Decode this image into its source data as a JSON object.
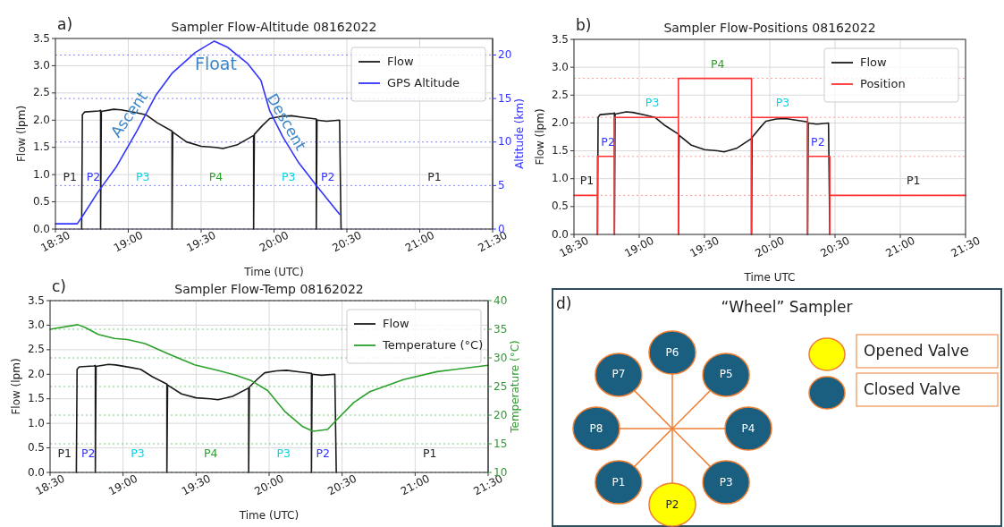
{
  "chart_data": [
    {
      "type": "line",
      "title": "Sampler Flow-Altitude 08162022",
      "xlabel": "Time (UTC)",
      "ylabel": "Flow (lpm)",
      "y2label": "Altitude (km)",
      "xlim": [
        18.5,
        21.5
      ],
      "xticks": [
        {
          "value": 18.5,
          "label": "18:30"
        },
        {
          "value": 19,
          "label": "19:00"
        },
        {
          "value": 19.5,
          "label": "19:30"
        },
        {
          "value": 20,
          "label": "20:00"
        },
        {
          "value": 20.5,
          "label": "20:30"
        },
        {
          "value": 21,
          "label": "21:00"
        },
        {
          "value": 21.5,
          "label": "21:30"
        }
      ],
      "ylim": [
        0,
        3.5
      ],
      "yticks": [
        {
          "value": 0,
          "label": "0.0"
        },
        0.5,
        {
          "value": 1,
          "label": "1.0"
        },
        1.5,
        {
          "value": 2,
          "label": "2.0"
        },
        2.5,
        {
          "value": 3,
          "label": "3.0"
        },
        3.5
      ],
      "y2lim": [
        0,
        21.9
      ],
      "y2ticks": [
        0,
        5,
        10,
        15,
        20
      ],
      "grid": true,
      "legend": "top right",
      "series": [
        {
          "name": "Flow",
          "color": "#1a1a1a",
          "x": [
            18.68,
            18.685,
            18.7,
            18.8,
            18.81,
            18.81,
            18.815,
            18.9,
            18.95,
            19.05,
            19.12,
            19.2,
            19.3,
            19.3,
            19.305,
            19.4,
            19.5,
            19.6,
            19.65,
            19.75,
            19.86,
            19.86,
            19.865,
            19.92,
            19.97,
            20.05,
            20.12,
            20.2,
            20.29,
            20.29,
            20.295,
            20.36,
            20.45,
            20.46
          ],
          "values": [
            0,
            2.1,
            2.15,
            2.17,
            2.18,
            0,
            2.16,
            2.2,
            2.19,
            2.14,
            2.1,
            1.95,
            1.8,
            0,
            1.78,
            1.6,
            1.52,
            1.5,
            1.48,
            1.55,
            1.72,
            0,
            1.74,
            1.9,
            2.03,
            2.07,
            2.08,
            2.05,
            2.02,
            0,
            2.0,
            1.98,
            2.0,
            0
          ]
        },
        {
          "name": "GPS Altitude",
          "color": "#3333ff",
          "axis": "y2",
          "x": [
            18.5,
            18.65,
            18.69,
            18.79,
            18.92,
            19.06,
            19.19,
            19.3,
            19.46,
            19.59,
            19.68,
            19.82,
            19.91,
            19.97,
            20.06,
            20.17,
            20.3,
            20.45
          ],
          "values": [
            0.6,
            0.6,
            1.6,
            4.2,
            7.2,
            11.3,
            15.4,
            17.9,
            20.3,
            21.6,
            20.9,
            19.0,
            17.1,
            13.6,
            10.6,
            7.6,
            4.8,
            1.7
          ]
        }
      ],
      "annotations": [
        "a)",
        "Ascent",
        "Float",
        "Descent",
        "P1",
        "P2",
        "P3",
        "P4",
        "P3",
        "P2",
        "P1"
      ]
    },
    {
      "type": "line",
      "title": "Sampler Flow-Positions 08162022",
      "xlabel": "Time UTC",
      "ylabel": "Flow (lpm)",
      "xlim": [
        18.5,
        21.5
      ],
      "xticks": [
        {
          "value": 18.5,
          "label": "18:30"
        },
        {
          "value": 19,
          "label": "19:00"
        },
        {
          "value": 19.5,
          "label": "19:30"
        },
        {
          "value": 20,
          "label": "20:00"
        },
        {
          "value": 20.5,
          "label": "20:30"
        },
        {
          "value": 21,
          "label": "21:00"
        },
        {
          "value": 21.5,
          "label": "21:30"
        }
      ],
      "ylim": [
        0,
        3.5
      ],
      "yticks": [
        {
          "value": 0,
          "label": "0.0"
        },
        0.5,
        {
          "value": 1,
          "label": "1.0"
        },
        1.5,
        {
          "value": 2,
          "label": "2.0"
        },
        2.5,
        {
          "value": 3,
          "label": "3.0"
        },
        3.5
      ],
      "grid": true,
      "legend": "top right",
      "ref_lines": [
        {
          "axis": "y",
          "value": 0.7,
          "color": "#ff9999",
          "line_style": "dotted"
        },
        {
          "axis": "y",
          "value": 1.4,
          "color": "#ff9999",
          "line_style": "dotted"
        },
        {
          "axis": "y",
          "value": 2.1,
          "color": "#ff9999",
          "line_style": "dotted"
        },
        {
          "axis": "y",
          "value": 2.8,
          "color": "#ff9999",
          "line_style": "dotted"
        }
      ],
      "series": [
        {
          "name": "Flow",
          "color": "#1a1a1a",
          "x": [
            18.68,
            18.685,
            18.7,
            18.8,
            18.81,
            18.81,
            18.815,
            18.9,
            18.95,
            19.05,
            19.12,
            19.2,
            19.3,
            19.3,
            19.305,
            19.4,
            19.5,
            19.6,
            19.65,
            19.75,
            19.86,
            19.86,
            19.865,
            19.92,
            19.97,
            20.05,
            20.12,
            20.2,
            20.29,
            20.29,
            20.295,
            20.36,
            20.45,
            20.46
          ],
          "values": [
            0,
            2.1,
            2.15,
            2.17,
            2.18,
            0,
            2.16,
            2.2,
            2.19,
            2.14,
            2.1,
            1.95,
            1.8,
            0,
            1.78,
            1.6,
            1.52,
            1.5,
            1.48,
            1.55,
            1.72,
            0,
            1.74,
            1.9,
            2.03,
            2.07,
            2.08,
            2.05,
            2.02,
            0,
            2.0,
            1.98,
            2.0,
            0
          ]
        },
        {
          "name": "Position",
          "color": "#ff3333",
          "x": [
            18.5,
            18.68,
            18.68,
            18.68,
            18.81,
            18.81,
            18.81,
            19.3,
            19.3,
            19.3,
            19.86,
            19.86,
            19.86,
            20.29,
            20.29,
            20.29,
            20.46,
            20.46,
            20.46,
            21.5
          ],
          "values": [
            0.7,
            0.7,
            0,
            1.4,
            1.4,
            0,
            2.1,
            2.1,
            0,
            2.8,
            2.8,
            0,
            2.1,
            2.1,
            0,
            1.4,
            1.4,
            0,
            0.7,
            0.7
          ]
        }
      ],
      "annotations": [
        "b)",
        "P1",
        "P2",
        "P3",
        "P4",
        "P3",
        "P2",
        "P1"
      ]
    },
    {
      "type": "line",
      "title": "Sampler Flow-Temp 08162022",
      "xlabel": "Time (UTC)",
      "ylabel": "Flow (lpm)",
      "y2label": "Temperature (°C)",
      "xlim": [
        18.5,
        21.5
      ],
      "xticks": [
        {
          "value": 18.5,
          "label": "18:30"
        },
        {
          "value": 19,
          "label": "19:00"
        },
        {
          "value": 19.5,
          "label": "19:30"
        },
        {
          "value": 20,
          "label": "20:00"
        },
        {
          "value": 20.5,
          "label": "20:30"
        },
        {
          "value": 21,
          "label": "21:00"
        },
        {
          "value": 21.5,
          "label": "21:30"
        }
      ],
      "ylim": [
        0,
        3.5
      ],
      "yticks": [
        {
          "value": 0,
          "label": "0.0"
        },
        0.5,
        {
          "value": 1,
          "label": "1.0"
        },
        1.5,
        {
          "value": 2,
          "label": "2.0"
        },
        2.5,
        {
          "value": 3,
          "label": "3.0"
        },
        3.5
      ],
      "y2lim": [
        10,
        40
      ],
      "y2ticks": [
        10,
        15,
        20,
        25,
        30,
        35,
        40
      ],
      "grid": true,
      "legend": "top right",
      "series": [
        {
          "name": "Flow",
          "color": "#1a1a1a",
          "x": [
            18.68,
            18.685,
            18.7,
            18.8,
            18.81,
            18.81,
            18.815,
            18.9,
            18.95,
            19.05,
            19.12,
            19.2,
            19.3,
            19.3,
            19.305,
            19.4,
            19.5,
            19.6,
            19.65,
            19.75,
            19.86,
            19.86,
            19.865,
            19.92,
            19.97,
            20.05,
            20.12,
            20.2,
            20.29,
            20.29,
            20.295,
            20.36,
            20.45,
            20.46
          ],
          "values": [
            0,
            2.1,
            2.15,
            2.17,
            2.18,
            0,
            2.16,
            2.2,
            2.19,
            2.14,
            2.1,
            1.95,
            1.8,
            0,
            1.78,
            1.6,
            1.52,
            1.5,
            1.48,
            1.55,
            1.72,
            0,
            1.74,
            1.9,
            2.03,
            2.07,
            2.08,
            2.05,
            2.02,
            0,
            2.0,
            1.98,
            2.0,
            0
          ]
        },
        {
          "name": "Temperature (°C)",
          "color": "#2ca02c",
          "axis": "y2",
          "x": [
            18.5,
            18.69,
            18.74,
            18.83,
            18.94,
            19.03,
            19.15,
            19.31,
            19.49,
            19.65,
            19.77,
            19.88,
            19.99,
            20.11,
            20.23,
            20.3,
            20.4,
            20.46,
            20.58,
            20.69,
            20.92,
            21.15,
            21.5
          ],
          "values": [
            35.0,
            35.8,
            35.3,
            34.1,
            33.4,
            33.2,
            32.5,
            30.7,
            28.8,
            27.8,
            27.0,
            26.0,
            24.3,
            20.6,
            18.0,
            17.2,
            17.5,
            19.1,
            22.2,
            24.1,
            26.2,
            27.6,
            28.7
          ]
        }
      ],
      "annotations": [
        "c)",
        "P1",
        "P2",
        "P3",
        "P4",
        "P3",
        "P2",
        "P1"
      ]
    },
    {
      "type": "other",
      "title": "“Wheel” Sampler",
      "annotations": [
        "d)",
        "P1",
        "P2",
        "P3",
        "P4",
        "P5",
        "P6",
        "P7",
        "P8",
        "Opened Valve",
        "Closed Valve"
      ]
    }
  ]
}
